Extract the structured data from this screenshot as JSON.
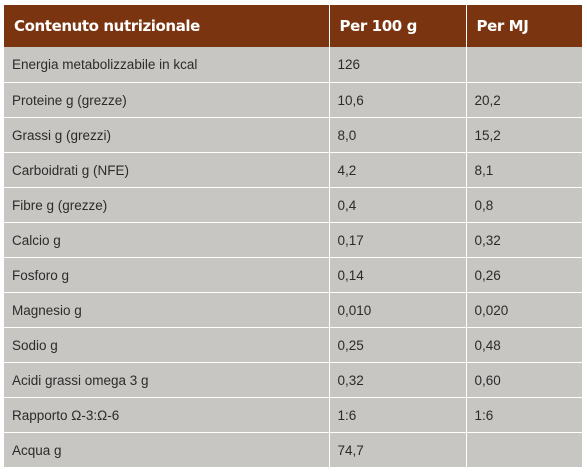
{
  "table": {
    "headers": [
      "Contenuto nutrizionale",
      "Per 100 g",
      "Per MJ"
    ],
    "rows": [
      [
        "Energia metabolizzabile in kcal",
        "126",
        ""
      ],
      [
        "Proteine g (grezze)",
        "10,6",
        "20,2"
      ],
      [
        "Grassi g (grezzi)",
        "8,0",
        "15,2"
      ],
      [
        "Carboidrati g (NFE)",
        "4,2",
        "8,1"
      ],
      [
        "Fibre g (grezze)",
        "0,4",
        "0,8"
      ],
      [
        "Calcio g",
        "0,17",
        "0,32"
      ],
      [
        "Fosforo g",
        "0,14",
        "0,26"
      ],
      [
        "Magnesio g",
        "0,010",
        "0,020"
      ],
      [
        "Sodio g",
        "0,25",
        "0,48"
      ],
      [
        "Acidi grassi omega 3 g",
        "0,32",
        "0,60"
      ],
      [
        "Rapporto Ω-3:Ω-6",
        "1:6",
        "1:6"
      ],
      [
        "Acqua g",
        "74,7",
        ""
      ]
    ]
  },
  "colors": {
    "header_bg": "#7a3410",
    "header_text": "#ffffff",
    "cell_bg": "#c8c6c2",
    "cell_text": "#2b2b2b"
  }
}
